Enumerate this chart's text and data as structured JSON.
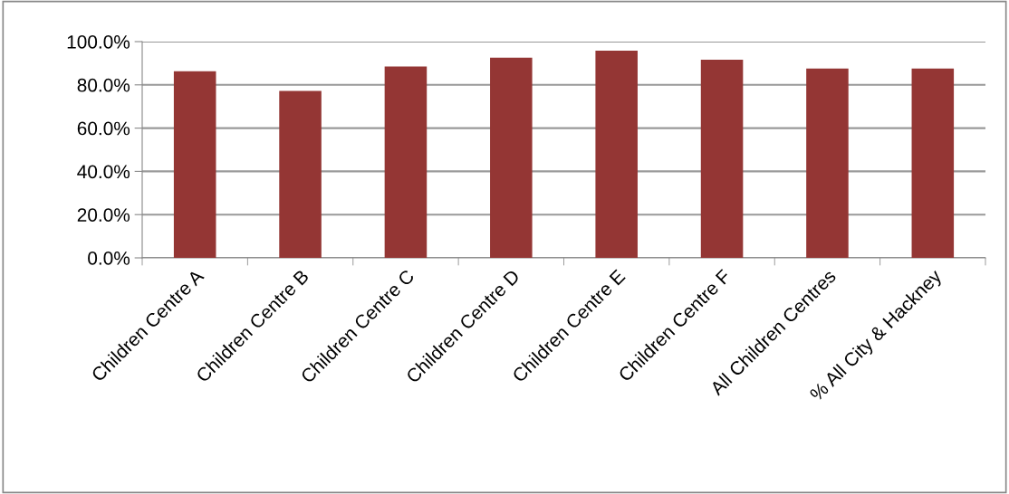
{
  "chart_data": {
    "type": "bar",
    "categories": [
      "Children Centre A",
      "Children Centre B",
      "Children Centre C",
      "Children Centre D",
      "Children Centre E",
      "Children Centre F",
      "All Children Centres",
      "% All City & Hackney"
    ],
    "values": [
      86.3,
      77.2,
      88.5,
      92.6,
      95.8,
      91.6,
      87.6,
      87.6
    ],
    "color": "#943634",
    "ylim": [
      0,
      100
    ],
    "yticks": [
      {
        "value": 0,
        "label": "0.0%"
      },
      {
        "value": 20,
        "label": "20.0%"
      },
      {
        "value": 40,
        "label": "40.0%"
      },
      {
        "value": 60,
        "label": "60.0%"
      },
      {
        "value": 80,
        "label": "80.0%"
      },
      {
        "value": 100,
        "label": "100.0%"
      }
    ],
    "grid": "y",
    "legend": false
  }
}
